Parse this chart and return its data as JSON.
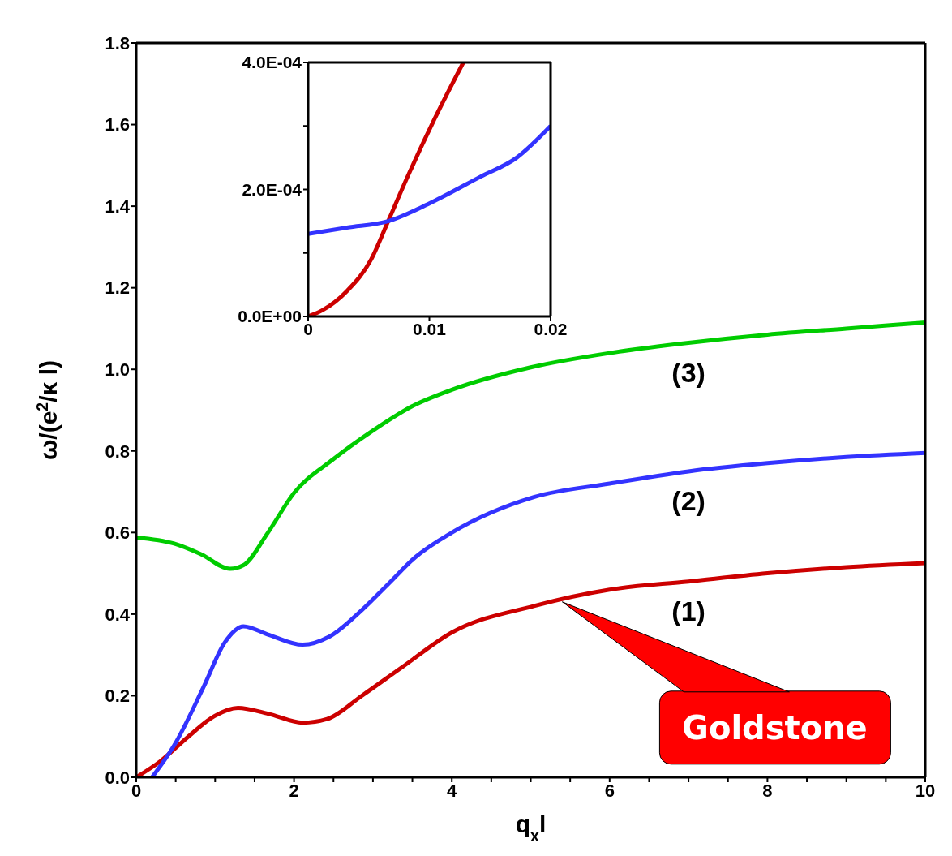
{
  "chart_data": [
    {
      "type": "line",
      "xlabel": "q$_{x}$l",
      "ylabel": "ω/(e$^{2}$/κ l)",
      "xlim": [
        0,
        10
      ],
      "ylim": [
        0,
        1.8
      ],
      "xticks": [
        0,
        {
          "value": 0.5,
          "label": null
        },
        {
          "value": 1,
          "label": null
        },
        {
          "value": 1.5,
          "label": null
        },
        2,
        {
          "value": 2.5,
          "label": null
        },
        {
          "value": 3,
          "label": null
        },
        {
          "value": 3.5,
          "label": null
        },
        4,
        {
          "value": 4.5,
          "label": null
        },
        {
          "value": 5,
          "label": null
        },
        {
          "value": 5.5,
          "label": null
        },
        6,
        {
          "value": 6.5,
          "label": null
        },
        {
          "value": 7,
          "label": null
        },
        {
          "value": 7.5,
          "label": null
        },
        8,
        {
          "value": 8.5,
          "label": null
        },
        {
          "value": 9,
          "label": null
        },
        {
          "value": 9.5,
          "label": null
        },
        10
      ],
      "yticks": [
        {
          "value": 0,
          "label": "0.0"
        },
        {
          "value": 0.2,
          "label": "0.2"
        },
        {
          "value": 0.4,
          "label": "0.4"
        },
        {
          "value": 0.6,
          "label": "0.6"
        },
        {
          "value": 0.8,
          "label": "0.8"
        },
        {
          "value": 1,
          "label": "1.0"
        },
        {
          "value": 1.2,
          "label": "1.2"
        },
        {
          "value": 1.4,
          "label": "1.4"
        },
        {
          "value": 1.6,
          "label": "1.6"
        },
        {
          "value": 1.8,
          "label": "1.8"
        }
      ],
      "annotations": [
        {
          "text": "Goldstone",
          "x": 5.4,
          "y": 0.43
        }
      ],
      "series": [
        {
          "name": "(1)",
          "color": "#cc0000",
          "x": [
            0,
            0.31,
            0.65,
            0.99,
            1.29,
            1.67,
            2.11,
            2.42,
            2.86,
            3.37,
            4,
            5.04,
            6,
            7,
            8,
            9,
            10
          ],
          "values": [
            0,
            0.04,
            0.098,
            0.15,
            0.17,
            0.156,
            0.134,
            0.143,
            0.2,
            0.27,
            0.355,
            0.42,
            0.46,
            0.48,
            0.5,
            0.515,
            0.525
          ]
        },
        {
          "name": "(2)",
          "color": "#3333ff",
          "x": [
            0.2,
            0.48,
            0.85,
            1.12,
            1.36,
            1.67,
            2.11,
            2.45,
            2.86,
            3.2,
            3.54,
            4,
            5.04,
            6,
            7,
            8,
            9,
            10
          ],
          "values": [
            0,
            0.078,
            0.22,
            0.33,
            0.37,
            0.35,
            0.325,
            0.345,
            0.41,
            0.475,
            0.54,
            0.6,
            0.687,
            0.72,
            0.75,
            0.77,
            0.785,
            0.795
          ]
        },
        {
          "name": "(3)",
          "color": "#00cc00",
          "x": [
            0,
            0.48,
            0.82,
            1.19,
            1.36,
            1.67,
            2,
            2.5,
            3,
            3.5,
            4,
            5,
            6,
            7,
            8,
            9,
            10
          ],
          "values": [
            0.588,
            0.573,
            0.547,
            0.511,
            0.52,
            0.6,
            0.697,
            0.78,
            0.85,
            0.91,
            0.95,
            1.005,
            1.04,
            1.065,
            1.085,
            1.1,
            1.115
          ]
        }
      ]
    },
    {
      "type": "line",
      "xlim": [
        0,
        0.02
      ],
      "ylim": [
        0,
        0.0004
      ],
      "xticks": [
        0,
        0.01,
        0.02
      ],
      "yticks": [
        {
          "value": 0,
          "label": "0.0E+00"
        },
        {
          "value": 0.0001,
          "label": null
        },
        {
          "value": 0.0002,
          "label": "2.0E-04"
        },
        {
          "value": 0.0003,
          "label": null
        },
        {
          "value": 0.0004,
          "label": "4.0E-04"
        }
      ],
      "series": [
        {
          "color": "#cc0000",
          "x": [
            0,
            0.0012,
            0.0032,
            0.0052,
            0.0066,
            0.0082,
            0.0104,
            0.0128
          ],
          "values": [
            0,
            1e-05,
            4e-05,
            9e-05,
            0.00015,
            0.00022,
            0.00031,
            0.0004
          ]
        },
        {
          "color": "#3333ff",
          "x": [
            0,
            0.0032,
            0.0066,
            0.0102,
            0.0142,
            0.0172,
            0.02
          ],
          "values": [
            0.00013,
            0.00014,
            0.00015,
            0.00018,
            0.00022,
            0.00025,
            0.0003
          ]
        }
      ]
    }
  ]
}
